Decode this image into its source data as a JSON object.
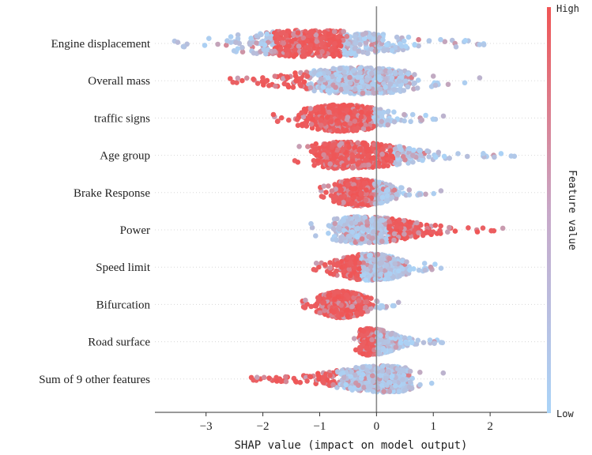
{
  "chart_data": {
    "type": "scatter",
    "subtype": "shap-beeswarm",
    "title": "",
    "xlabel": "SHAP value (impact on model output)",
    "xlim": [
      -3.9,
      3.0
    ],
    "xticks": [
      -3,
      -2,
      -1,
      0,
      1,
      2
    ],
    "colorbar": {
      "title": "Feature value",
      "high_label": "High",
      "low_label": "Low",
      "high_color": "#f05454",
      "low_color": "#aad4f8"
    },
    "features": [
      {
        "name": "Engine displacement",
        "min": -3.7,
        "max": 2.2,
        "mean_abs": 1.05,
        "high_range": [
          -1.8,
          -0.6
        ],
        "density_peak": -1.1
      },
      {
        "name": "Overall mass",
        "min": -2.7,
        "max": 1.85,
        "mean_abs": 0.72,
        "high_range": [
          -2.7,
          -1.2
        ],
        "density_peak": -0.3
      },
      {
        "name": "traffic signs",
        "min": -1.9,
        "max": 1.2,
        "mean_abs": 0.62,
        "high_range": [
          -1.9,
          -0.05
        ],
        "density_peak": -0.6
      },
      {
        "name": "Age group",
        "min": -1.6,
        "max": 2.65,
        "mean_abs": 0.55,
        "high_range": [
          -1.6,
          0.3
        ],
        "density_peak": -0.5
      },
      {
        "name": "Brake Response",
        "min": -1.05,
        "max": 1.15,
        "mean_abs": 0.48,
        "high_range": [
          -1.05,
          -0.05
        ],
        "density_peak": -0.3
      },
      {
        "name": "Power",
        "min": -1.25,
        "max": 2.25,
        "mean_abs": 0.45,
        "high_range": [
          0.2,
          2.25
        ],
        "density_peak": -0.2
      },
      {
        "name": "Speed limit",
        "min": -1.2,
        "max": 1.3,
        "mean_abs": 0.4,
        "high_range": [
          -1.2,
          -0.3
        ],
        "density_peak": -0.1
      },
      {
        "name": "Bifurcation",
        "min": -1.35,
        "max": 0.4,
        "mean_abs": 0.36,
        "high_range": [
          -1.35,
          -0.05
        ],
        "density_peak": -0.6
      },
      {
        "name": "Road surface",
        "min": -0.45,
        "max": 1.25,
        "mean_abs": 0.18,
        "high_range": [
          -0.45,
          0.0
        ],
        "density_peak": -0.1
      },
      {
        "name": "Sum of 9 other features",
        "min": -2.3,
        "max": 1.2,
        "mean_abs": 0.5,
        "high_range": [
          -2.3,
          -0.7
        ],
        "density_peak": 0.1
      }
    ],
    "zero_line": 0,
    "grid": false,
    "legend": "colorbar-right"
  }
}
